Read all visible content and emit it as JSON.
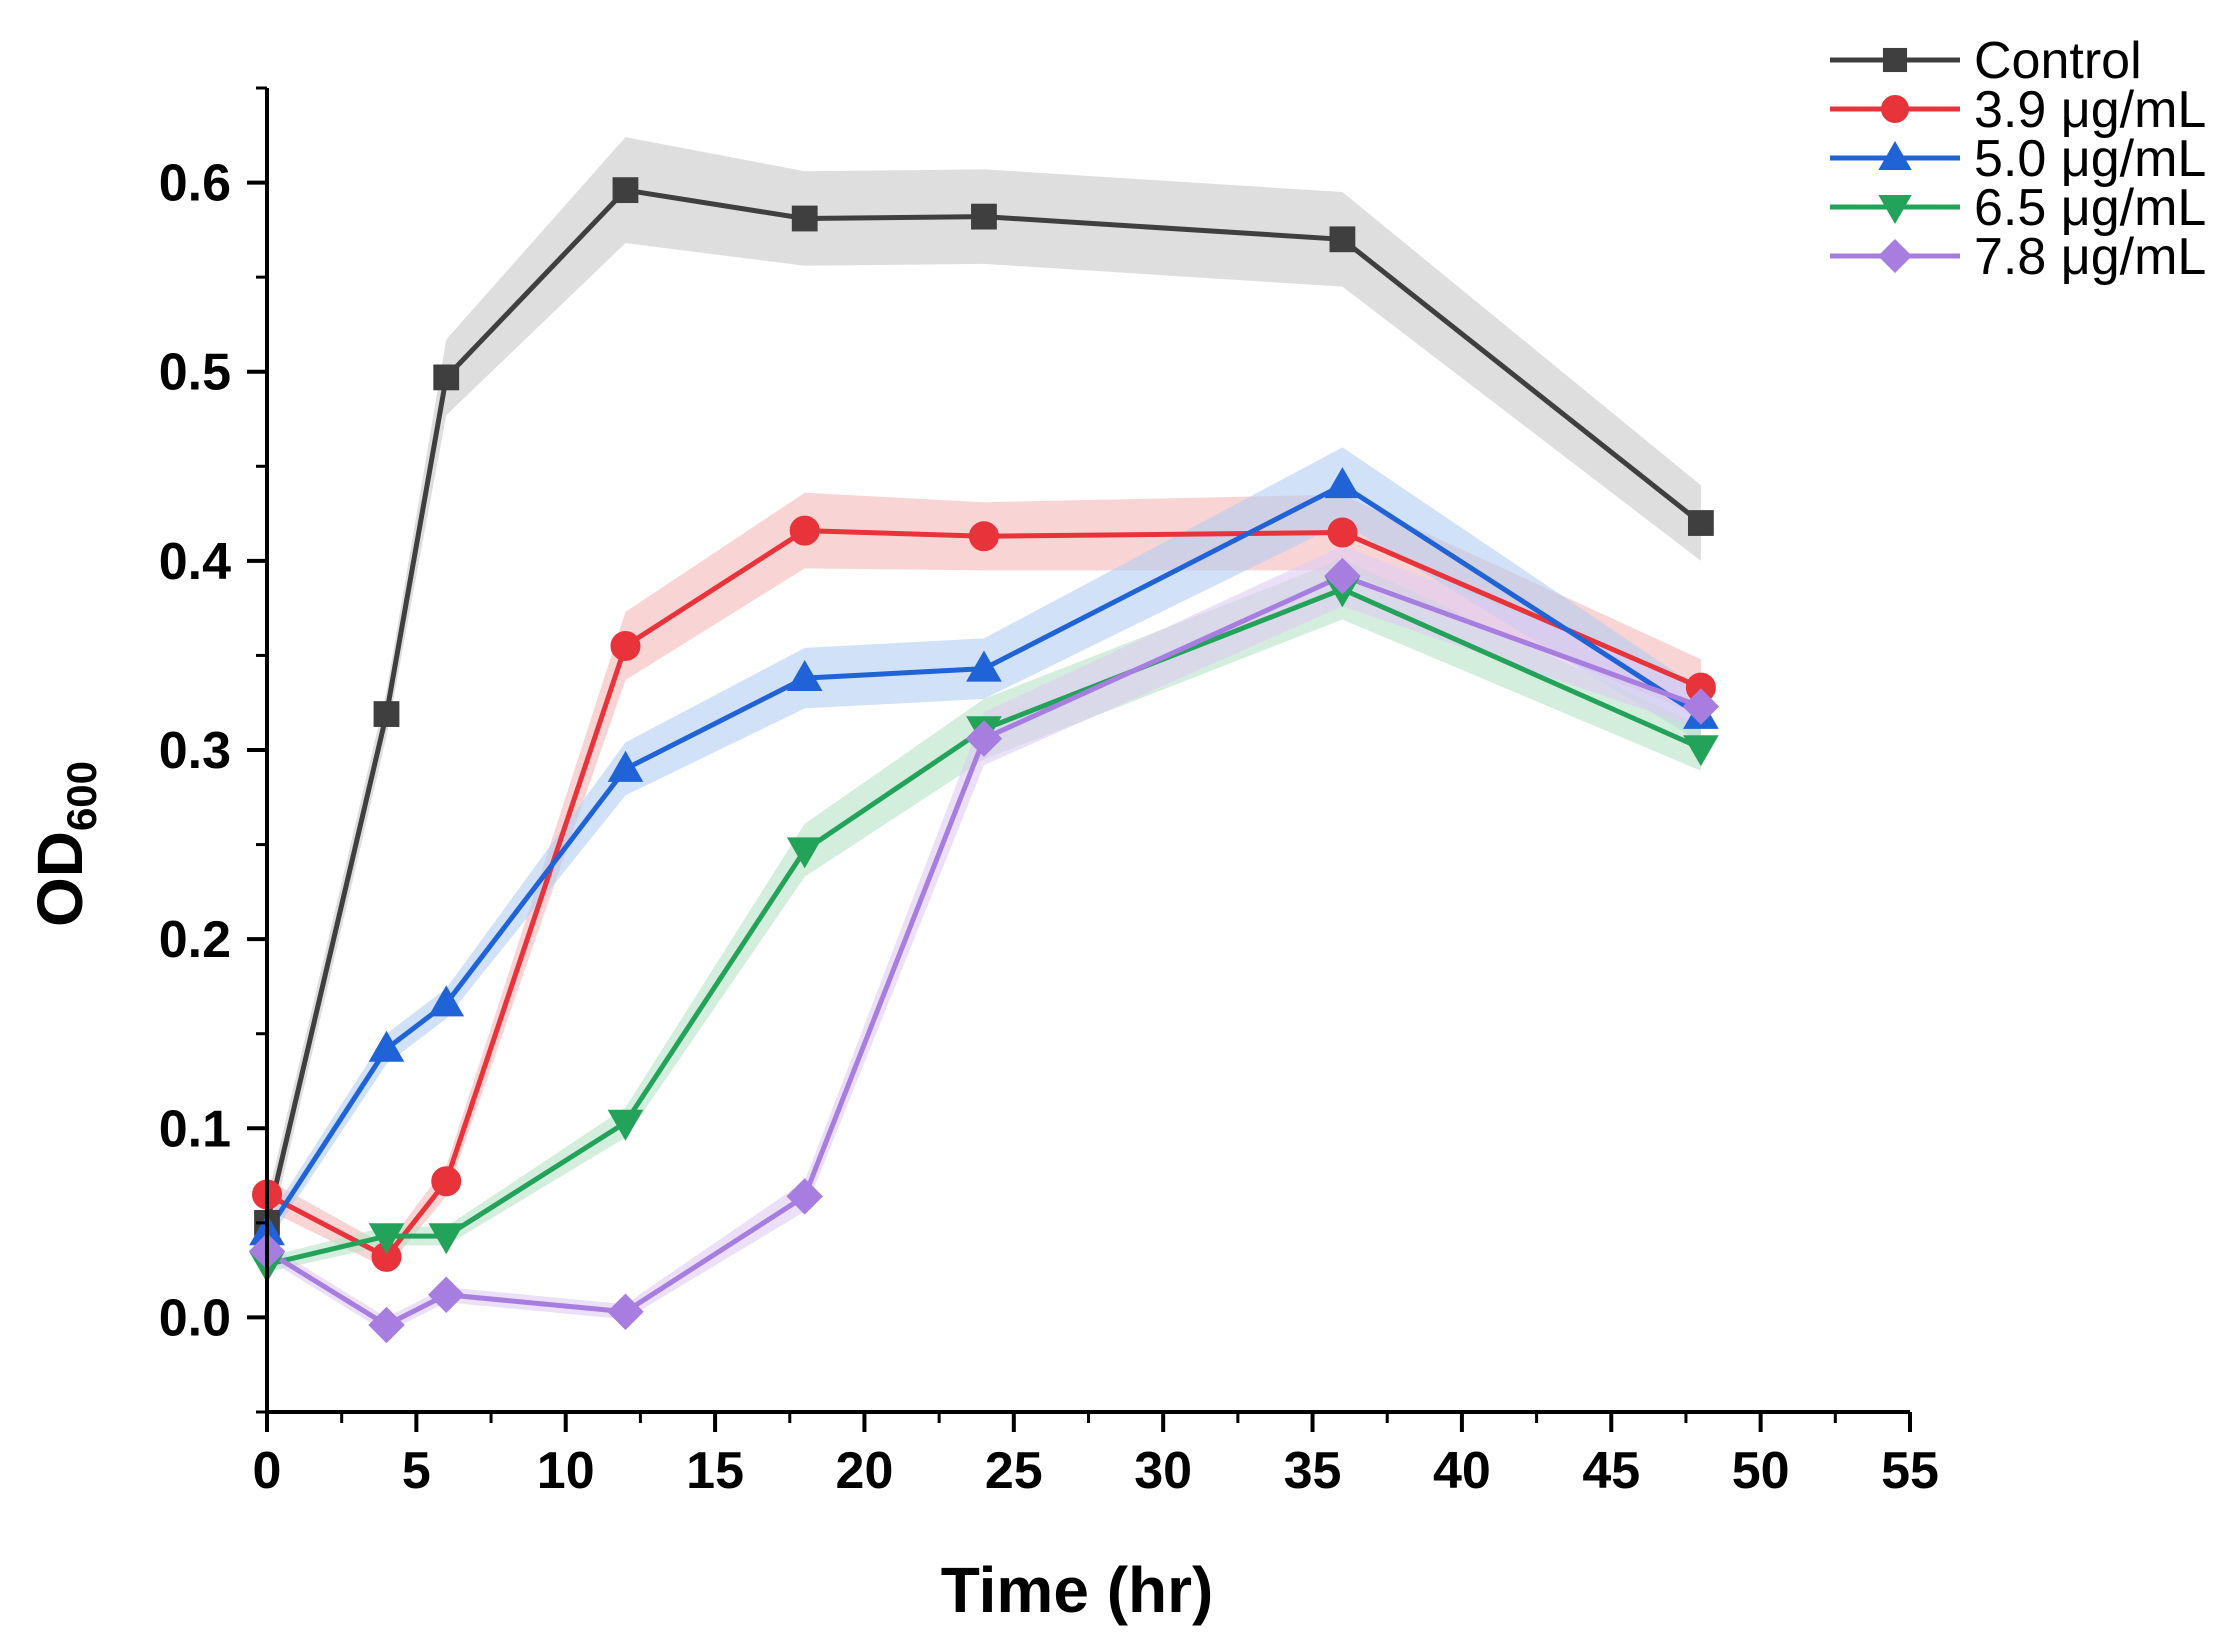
{
  "chart_data": {
    "type": "line",
    "title": "",
    "xlabel": "Time (hr)",
    "ylabel_main": "OD",
    "ylabel_subscript": "600",
    "xlim": [
      0,
      55
    ],
    "ylim": [
      -0.05,
      0.65
    ],
    "x_ticks": [
      "0",
      "5",
      "10",
      "15",
      "20",
      "25",
      "30",
      "35",
      "40",
      "45",
      "50",
      "55"
    ],
    "y_ticks": [
      "0.0",
      "0.1",
      "0.2",
      "0.3",
      "0.4",
      "0.5",
      "0.6"
    ],
    "legend_position": "top-right",
    "x": [
      0,
      4,
      6,
      12,
      18,
      24,
      36,
      48
    ],
    "series": [
      {
        "name": "Control",
        "color": "#3f3f3f",
        "band_color": "#c8c8c8",
        "marker": "square",
        "values": [
          0.05,
          0.319,
          0.497,
          0.596,
          0.581,
          0.582,
          0.57,
          0.42
        ],
        "band": [
          0.012,
          0.012,
          0.02,
          0.028,
          0.025,
          0.025,
          0.025,
          0.02
        ]
      },
      {
        "name": "3.9 μg/mL",
        "color": "#e8333a",
        "band_color": "#f5b8b8",
        "marker": "circle",
        "values": [
          0.065,
          0.032,
          0.072,
          0.355,
          0.416,
          0.413,
          0.415,
          0.333
        ],
        "band": [
          0.008,
          0.006,
          0.008,
          0.018,
          0.02,
          0.018,
          0.02,
          0.015
        ]
      },
      {
        "name": "5.0 μg/mL",
        "color": "#1f63d6",
        "band_color": "#b3cdf2",
        "marker": "triangle-up",
        "values": [
          0.045,
          0.142,
          0.166,
          0.29,
          0.338,
          0.343,
          0.44,
          0.318
        ],
        "band": [
          0.006,
          0.008,
          0.008,
          0.014,
          0.016,
          0.016,
          0.02,
          0.014
        ]
      },
      {
        "name": "6.5 μg/mL",
        "color": "#23a35a",
        "band_color": "#b8e2c6",
        "marker": "triangle-down",
        "values": [
          0.028,
          0.043,
          0.043,
          0.103,
          0.247,
          0.311,
          0.385,
          0.301
        ],
        "band": [
          0.004,
          0.005,
          0.005,
          0.008,
          0.014,
          0.016,
          0.016,
          0.012
        ]
      },
      {
        "name": "7.8 μg/mL",
        "color": "#a77ee0",
        "band_color": "#ddccf3",
        "marker": "diamond",
        "values": [
          0.035,
          -0.004,
          0.012,
          0.003,
          0.064,
          0.306,
          0.392,
          0.323
        ],
        "band": [
          0.004,
          0.004,
          0.004,
          0.004,
          0.008,
          0.014,
          0.016,
          0.012
        ]
      }
    ]
  }
}
